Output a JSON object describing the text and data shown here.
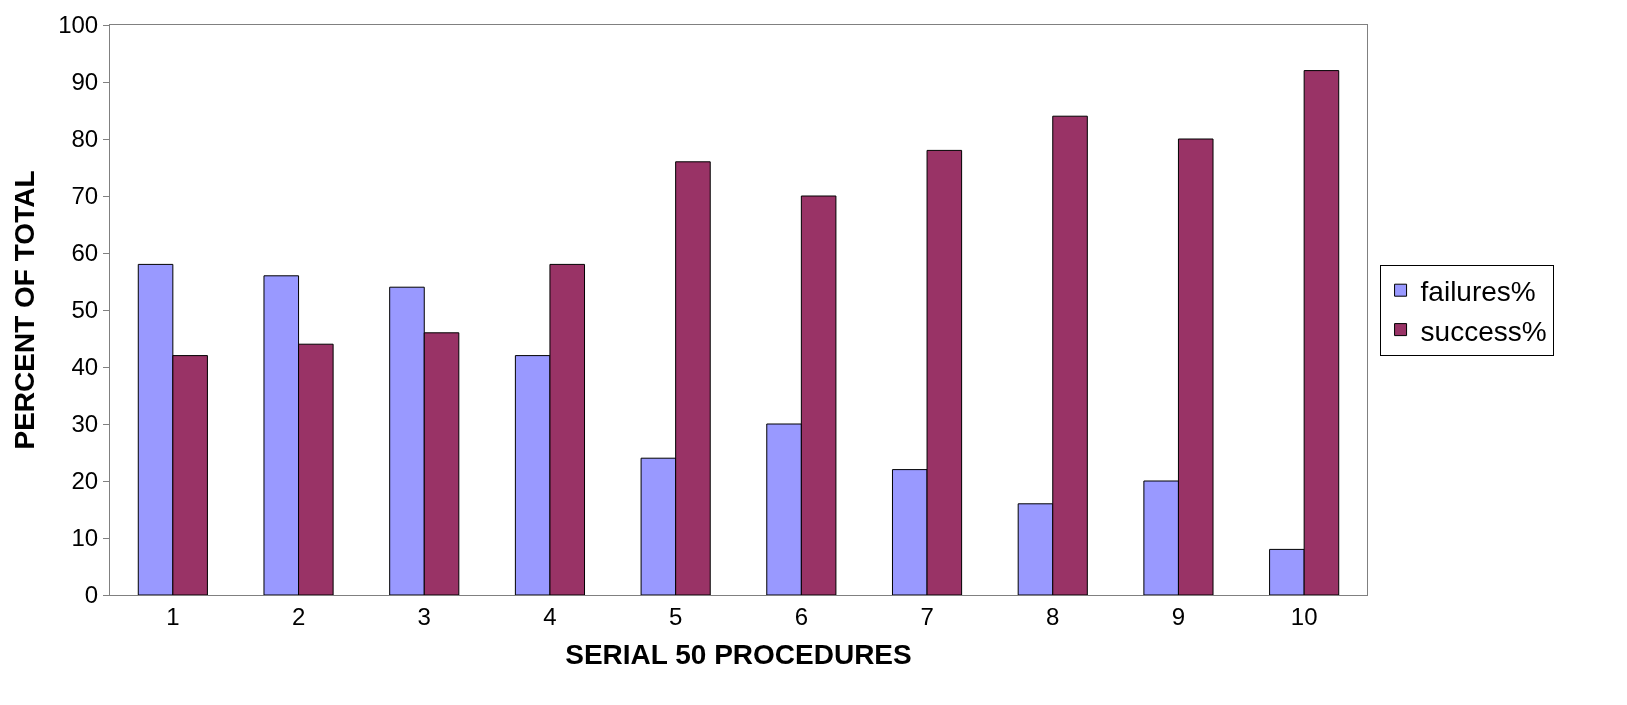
{
  "chart_data": {
    "type": "bar",
    "xlabel": "SERIAL 50 PROCEDURES",
    "ylabel": "PERCENT OF TOTAL",
    "categories": [
      "1",
      "2",
      "3",
      "4",
      "5",
      "6",
      "7",
      "8",
      "9",
      "10"
    ],
    "series": [
      {
        "name": "failures%",
        "color": "#9999ff",
        "values": [
          58,
          56,
          54,
          42,
          24,
          30,
          22,
          16,
          20,
          8
        ]
      },
      {
        "name": "success%",
        "color": "#993366",
        "values": [
          42,
          44,
          46,
          58,
          76,
          70,
          78,
          84,
          80,
          92
        ]
      }
    ],
    "ylim": [
      0,
      100
    ],
    "yticks": [
      0,
      10,
      20,
      30,
      40,
      50,
      60,
      70,
      80,
      90,
      100
    ],
    "grid": false,
    "legend": "right"
  }
}
